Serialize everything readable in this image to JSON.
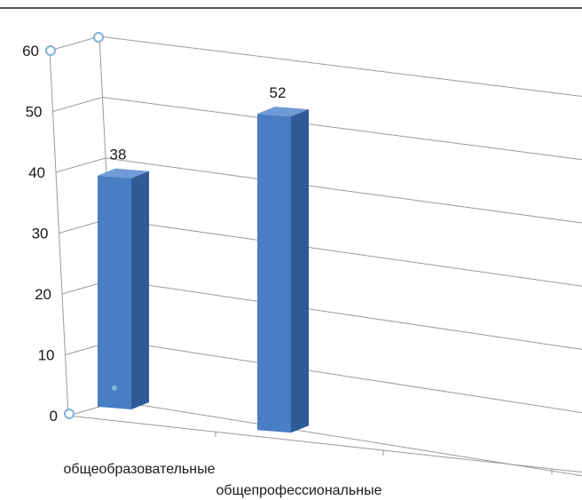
{
  "chart_data": {
    "type": "bar",
    "view": "3d-perspective",
    "categories": [
      "общеобразовательные",
      "общепрофессиональные"
    ],
    "values": [
      38,
      52
    ],
    "data_labels": [
      "38",
      "52"
    ],
    "yticks": [
      "0",
      "10",
      "20",
      "30",
      "40",
      "50",
      "60"
    ],
    "ylim": [
      0,
      60
    ],
    "grid": true,
    "legend": "none",
    "bar_color": "#4a7ec4",
    "bar_side_color": "#2e5a98",
    "bar_top_color": "#6f9ad3",
    "gridline_color": "#9a9a9a",
    "frame_line_color": "#5a5a5a",
    "selection_handle_color": "#7fb3d8"
  }
}
